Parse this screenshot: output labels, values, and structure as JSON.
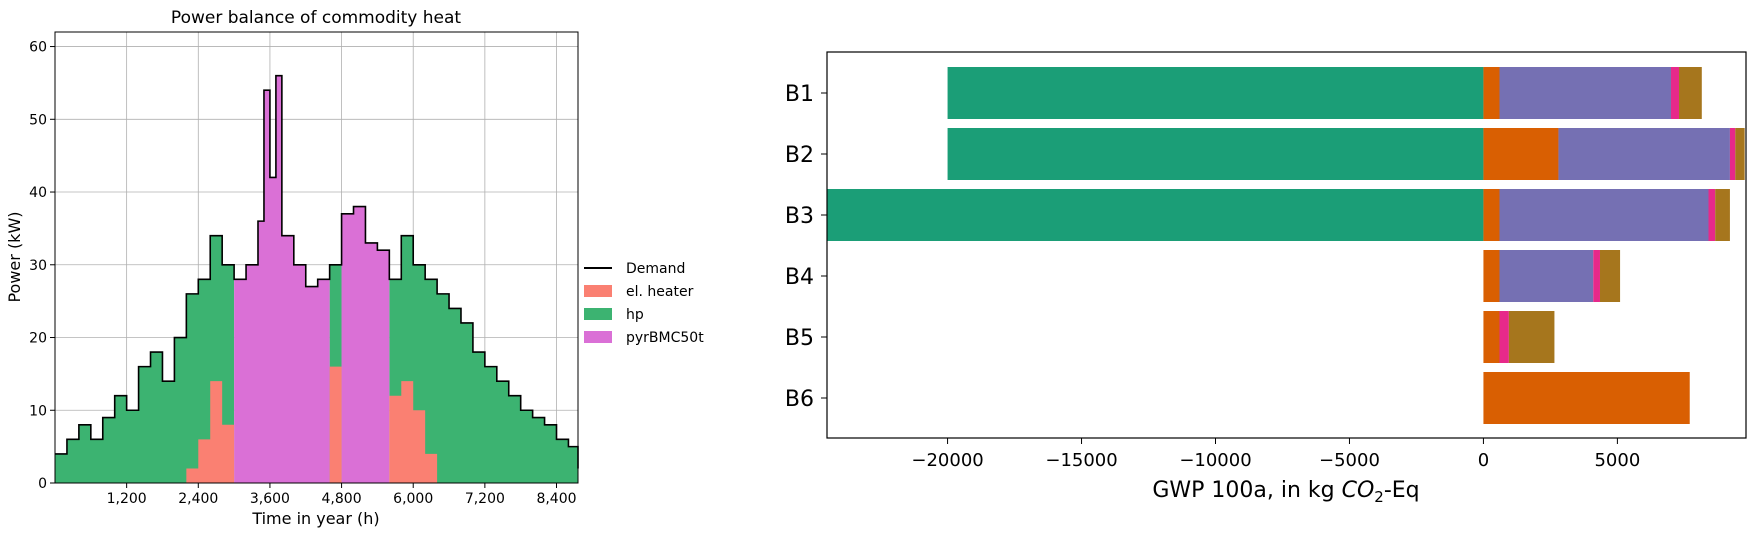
{
  "chart_data": [
    {
      "type": "area",
      "title": "Power balance of commodity heat",
      "xlabel": "Time in year (h)",
      "ylabel": "Power (kW)",
      "xlim": [
        0,
        8760
      ],
      "ylim": [
        0,
        62
      ],
      "xticks": [
        1200,
        2400,
        3600,
        4800,
        6000,
        7200,
        8400
      ],
      "xtick_labels": [
        "1,200",
        "2,400",
        "3,600",
        "4,800",
        "6,000",
        "7,200",
        "8,400"
      ],
      "yticks": [
        0,
        10,
        20,
        30,
        40,
        50,
        60
      ],
      "grid": true,
      "legend_position": "right",
      "legend": [
        {
          "label": "Demand",
          "kind": "line",
          "color": "#000000"
        },
        {
          "label": "el. heater",
          "kind": "patch",
          "color": "#fa8072"
        },
        {
          "label": "hp",
          "kind": "patch",
          "color": "#3cb371"
        },
        {
          "label": "pyrBMC50t",
          "kind": "patch",
          "color": "#da70d6"
        }
      ],
      "x": [
        0,
        200,
        400,
        600,
        800,
        1000,
        1200,
        1400,
        1600,
        1800,
        2000,
        2200,
        2400,
        2600,
        2800,
        3000,
        3200,
        3400,
        3500,
        3600,
        3700,
        3800,
        4000,
        4200,
        4400,
        4600,
        4800,
        5000,
        5200,
        5400,
        5600,
        5800,
        6000,
        6200,
        6400,
        6600,
        6800,
        7000,
        7200,
        7400,
        7600,
        7800,
        8000,
        8200,
        8400,
        8600,
        8760
      ],
      "series": [
        {
          "name": "Demand",
          "values": [
            4,
            6,
            8,
            6,
            9,
            12,
            10,
            16,
            18,
            14,
            20,
            26,
            28,
            34,
            30,
            28,
            30,
            36,
            54,
            42,
            56,
            34,
            30,
            27,
            28,
            30,
            37,
            38,
            33,
            32,
            28,
            34,
            30,
            28,
            26,
            24,
            22,
            18,
            16,
            14,
            12,
            10,
            9,
            8,
            6,
            5,
            2
          ]
        },
        {
          "name": "hp",
          "values": [
            4,
            6,
            8,
            6,
            9,
            12,
            10,
            16,
            18,
            14,
            20,
            26,
            28,
            34,
            30,
            0,
            0,
            0,
            0,
            0,
            0,
            0,
            0,
            0,
            0,
            30,
            0,
            0,
            0,
            0,
            28,
            34,
            30,
            28,
            26,
            24,
            22,
            18,
            16,
            14,
            12,
            10,
            9,
            8,
            6,
            5,
            2
          ]
        },
        {
          "name": "pyrBMC50t",
          "values": [
            0,
            0,
            0,
            0,
            0,
            0,
            0,
            0,
            0,
            0,
            0,
            0,
            0,
            0,
            0,
            28,
            30,
            36,
            54,
            42,
            56,
            34,
            30,
            27,
            28,
            0,
            37,
            38,
            33,
            32,
            0,
            0,
            0,
            0,
            0,
            0,
            0,
            0,
            0,
            0,
            0,
            0,
            0,
            0,
            0,
            0,
            0
          ]
        },
        {
          "name": "el. heater",
          "values": [
            0,
            0,
            0,
            0,
            0,
            0,
            0,
            0,
            0,
            0,
            0,
            2,
            6,
            14,
            8,
            0,
            0,
            0,
            0,
            0,
            0,
            0,
            0,
            0,
            0,
            16,
            0,
            0,
            0,
            0,
            12,
            14,
            10,
            4,
            0,
            0,
            0,
            0,
            0,
            0,
            0,
            0,
            0,
            0,
            0,
            0,
            0
          ]
        }
      ]
    },
    {
      "type": "bar",
      "orientation": "horizontal",
      "stacked": true,
      "title": "",
      "xlabel_prefix": "GWP 100a, in kg ",
      "xlabel_chem": "CO",
      "xlabel_sub": "2",
      "xlabel_suffix": "-Eq",
      "ylabel": "",
      "xlim": [
        -24500,
        9800
      ],
      "xticks": [
        -20000,
        -15000,
        -10000,
        -5000,
        0,
        5000
      ],
      "xtick_labels": [
        "−20000",
        "−15000",
        "−10000",
        "−5000",
        "0",
        "5000"
      ],
      "grid": false,
      "categories": [
        "B1",
        "B2",
        "B3",
        "B4",
        "B5",
        "B6"
      ],
      "colors": [
        "#1b9e77",
        "#d95f02",
        "#7570b3",
        "#e7298a",
        "#a6761d"
      ],
      "series": [
        {
          "values": [
            -20000,
            -20000,
            -24500,
            0,
            0,
            0
          ]
        },
        {
          "values": [
            600,
            2800,
            600,
            600,
            600,
            7700
          ]
        },
        {
          "values": [
            6400,
            6400,
            7800,
            3500,
            0,
            0
          ]
        },
        {
          "values": [
            300,
            200,
            250,
            250,
            350,
            0
          ]
        },
        {
          "values": [
            850,
            350,
            550,
            750,
            1700,
            0
          ]
        }
      ]
    }
  ]
}
